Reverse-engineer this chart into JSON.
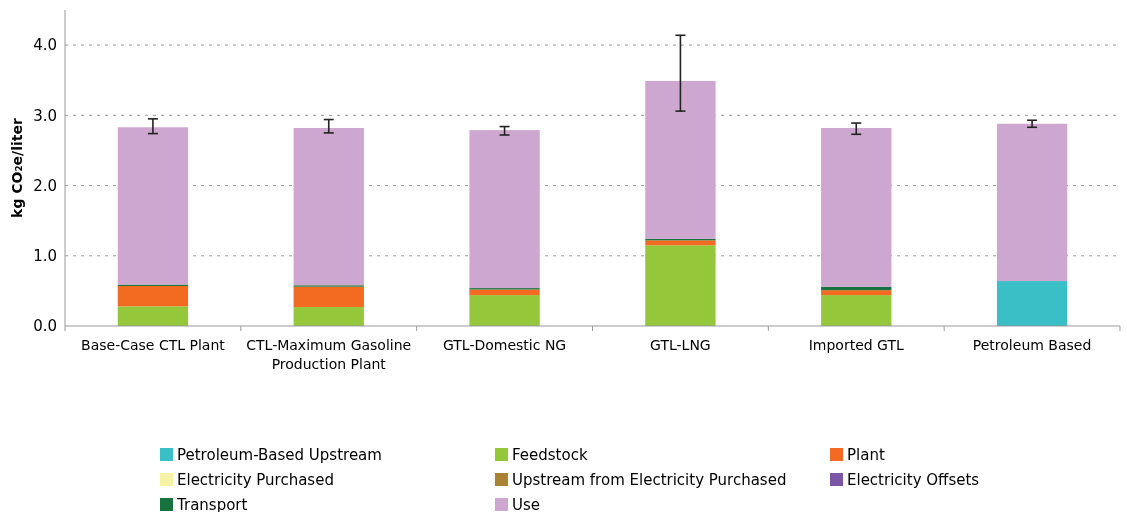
{
  "chart_data": {
    "type": "bar",
    "stacked": true,
    "ylabel": "kg CO₂e/liter",
    "categories": [
      "Base-Case CTL Plant",
      "CTL-Maximum Gasoline Production Plant",
      "GTL-Domestic NG",
      "GTL-LNG",
      "Imported GTL",
      "Petroleum Based"
    ],
    "series": [
      {
        "name": "Petroleum-Based Upstream",
        "color": "#3bbfc6",
        "values": [
          0,
          0,
          0,
          0,
          0,
          0.64
        ]
      },
      {
        "name": "Feedstock",
        "color": "#95c73b",
        "values": [
          0.28,
          0.27,
          0.44,
          1.15,
          0.44,
          0
        ]
      },
      {
        "name": "Plant",
        "color": "#f26b21",
        "values": [
          0.29,
          0.29,
          0.08,
          0.07,
          0.07,
          0
        ]
      },
      {
        "name": "Electricity Purchased",
        "color": "#f7f3a6",
        "values": [
          0,
          0,
          0,
          0,
          0,
          0
        ]
      },
      {
        "name": "Upstream from Electricity Purchased",
        "color": "#a98234",
        "values": [
          0,
          0,
          0,
          0,
          0,
          0
        ]
      },
      {
        "name": "Electricity Offsets",
        "color": "#7b55a6",
        "values": [
          0,
          0,
          0,
          0,
          0,
          0
        ]
      },
      {
        "name": "Transport",
        "color": "#16733d",
        "values": [
          0.02,
          0.02,
          0.02,
          0.02,
          0.05,
          0
        ]
      },
      {
        "name": "Use",
        "color": "#cda7cf",
        "values": [
          2.24,
          2.24,
          2.25,
          2.25,
          2.26,
          2.24
        ],
        "errors": [
          [
            2.74,
            2.95
          ],
          [
            2.75,
            2.94
          ],
          [
            2.72,
            2.84
          ],
          [
            3.06,
            4.14
          ],
          [
            2.73,
            2.89
          ],
          [
            2.83,
            2.93
          ]
        ]
      }
    ],
    "ylim": [
      0,
      4.5
    ],
    "yticks": [
      {
        "value": 0,
        "label": "0.0"
      },
      {
        "value": 1,
        "label": "1.0"
      },
      {
        "value": 2,
        "label": "2.0"
      },
      {
        "value": 3,
        "label": "3.0"
      },
      {
        "value": 4,
        "label": "4.0"
      }
    ],
    "grid": "y",
    "legend": "bottom"
  }
}
